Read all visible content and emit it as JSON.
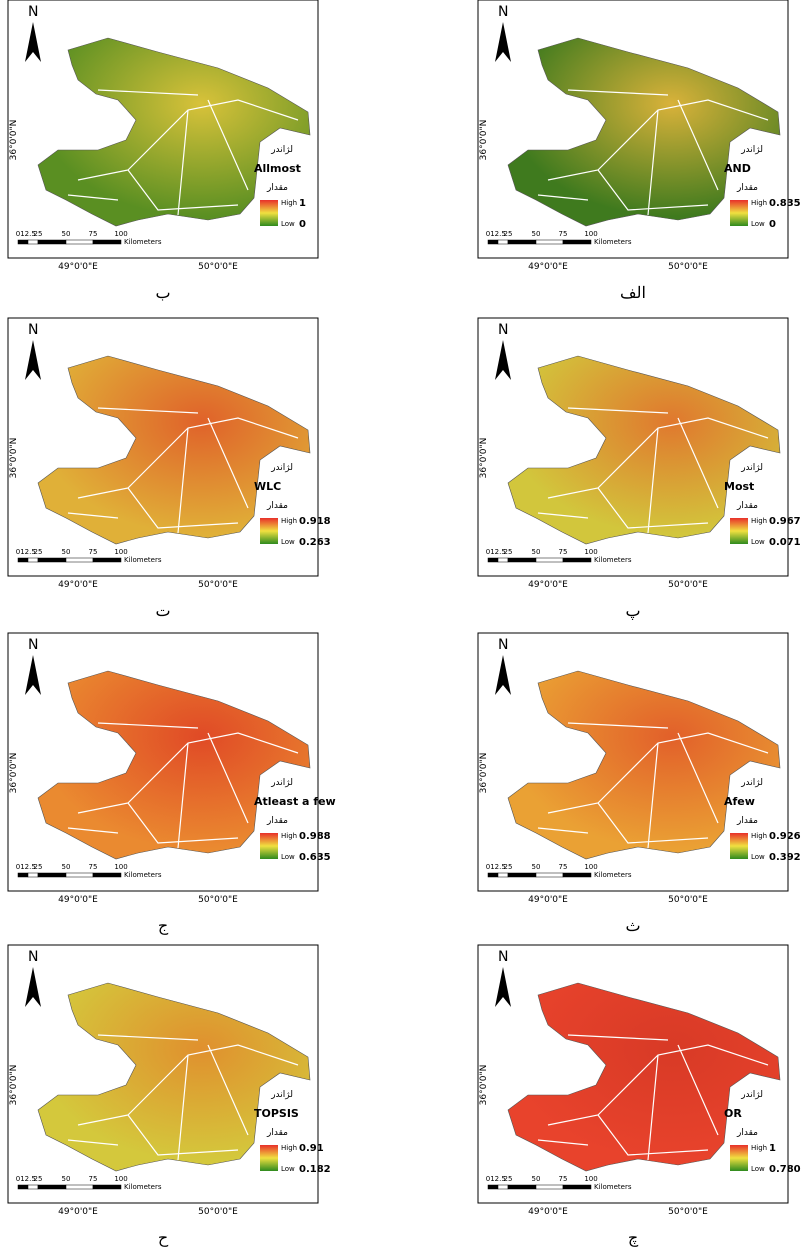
{
  "common": {
    "north": "N",
    "lat": "36°0'0\"N",
    "legend_title": "لژاندر",
    "value_label": "مقدار",
    "high": "High",
    "low": "Low",
    "scale": [
      "0",
      "12.5",
      "25",
      "50",
      "75",
      "100"
    ],
    "kilometers": "Kilometers",
    "lon": [
      "49°0'0\"E",
      "50°0'0\"E"
    ]
  },
  "panels": [
    {
      "caption": "الف",
      "method": "AND",
      "high": "0.835",
      "low": "0",
      "color": "#3f7a1e",
      "accent": "#d9b23a"
    },
    {
      "caption": "ب",
      "method": "Allmost",
      "high": "1",
      "low": "0",
      "color": "#5a8f22",
      "accent": "#d8c23a"
    },
    {
      "caption": "پ",
      "method": "Most",
      "high": "0.967",
      "low": "0.071",
      "color": "#d2c63c",
      "accent": "#e0782e"
    },
    {
      "caption": "ت",
      "method": "WLC",
      "high": "0.918",
      "low": "0.263",
      "color": "#e0b038",
      "accent": "#e0622a"
    },
    {
      "caption": "ث",
      "method": "Afew",
      "high": "0.926",
      "low": "0.392",
      "color": "#eaa134",
      "accent": "#e2602a"
    },
    {
      "caption": "ج",
      "method": "Atleast a few",
      "high": "0.988",
      "low": "0.635",
      "color": "#ea8a30",
      "accent": "#e04a26"
    },
    {
      "caption": "چ",
      "method": "OR",
      "high": "1",
      "low": "0.780",
      "color": "#e8432c",
      "accent": "#d83a26"
    },
    {
      "caption": "ح",
      "method": "TOPSIS",
      "high": "0.91",
      "low": "0.182",
      "color": "#d4c83c",
      "accent": "#e0902e"
    }
  ]
}
